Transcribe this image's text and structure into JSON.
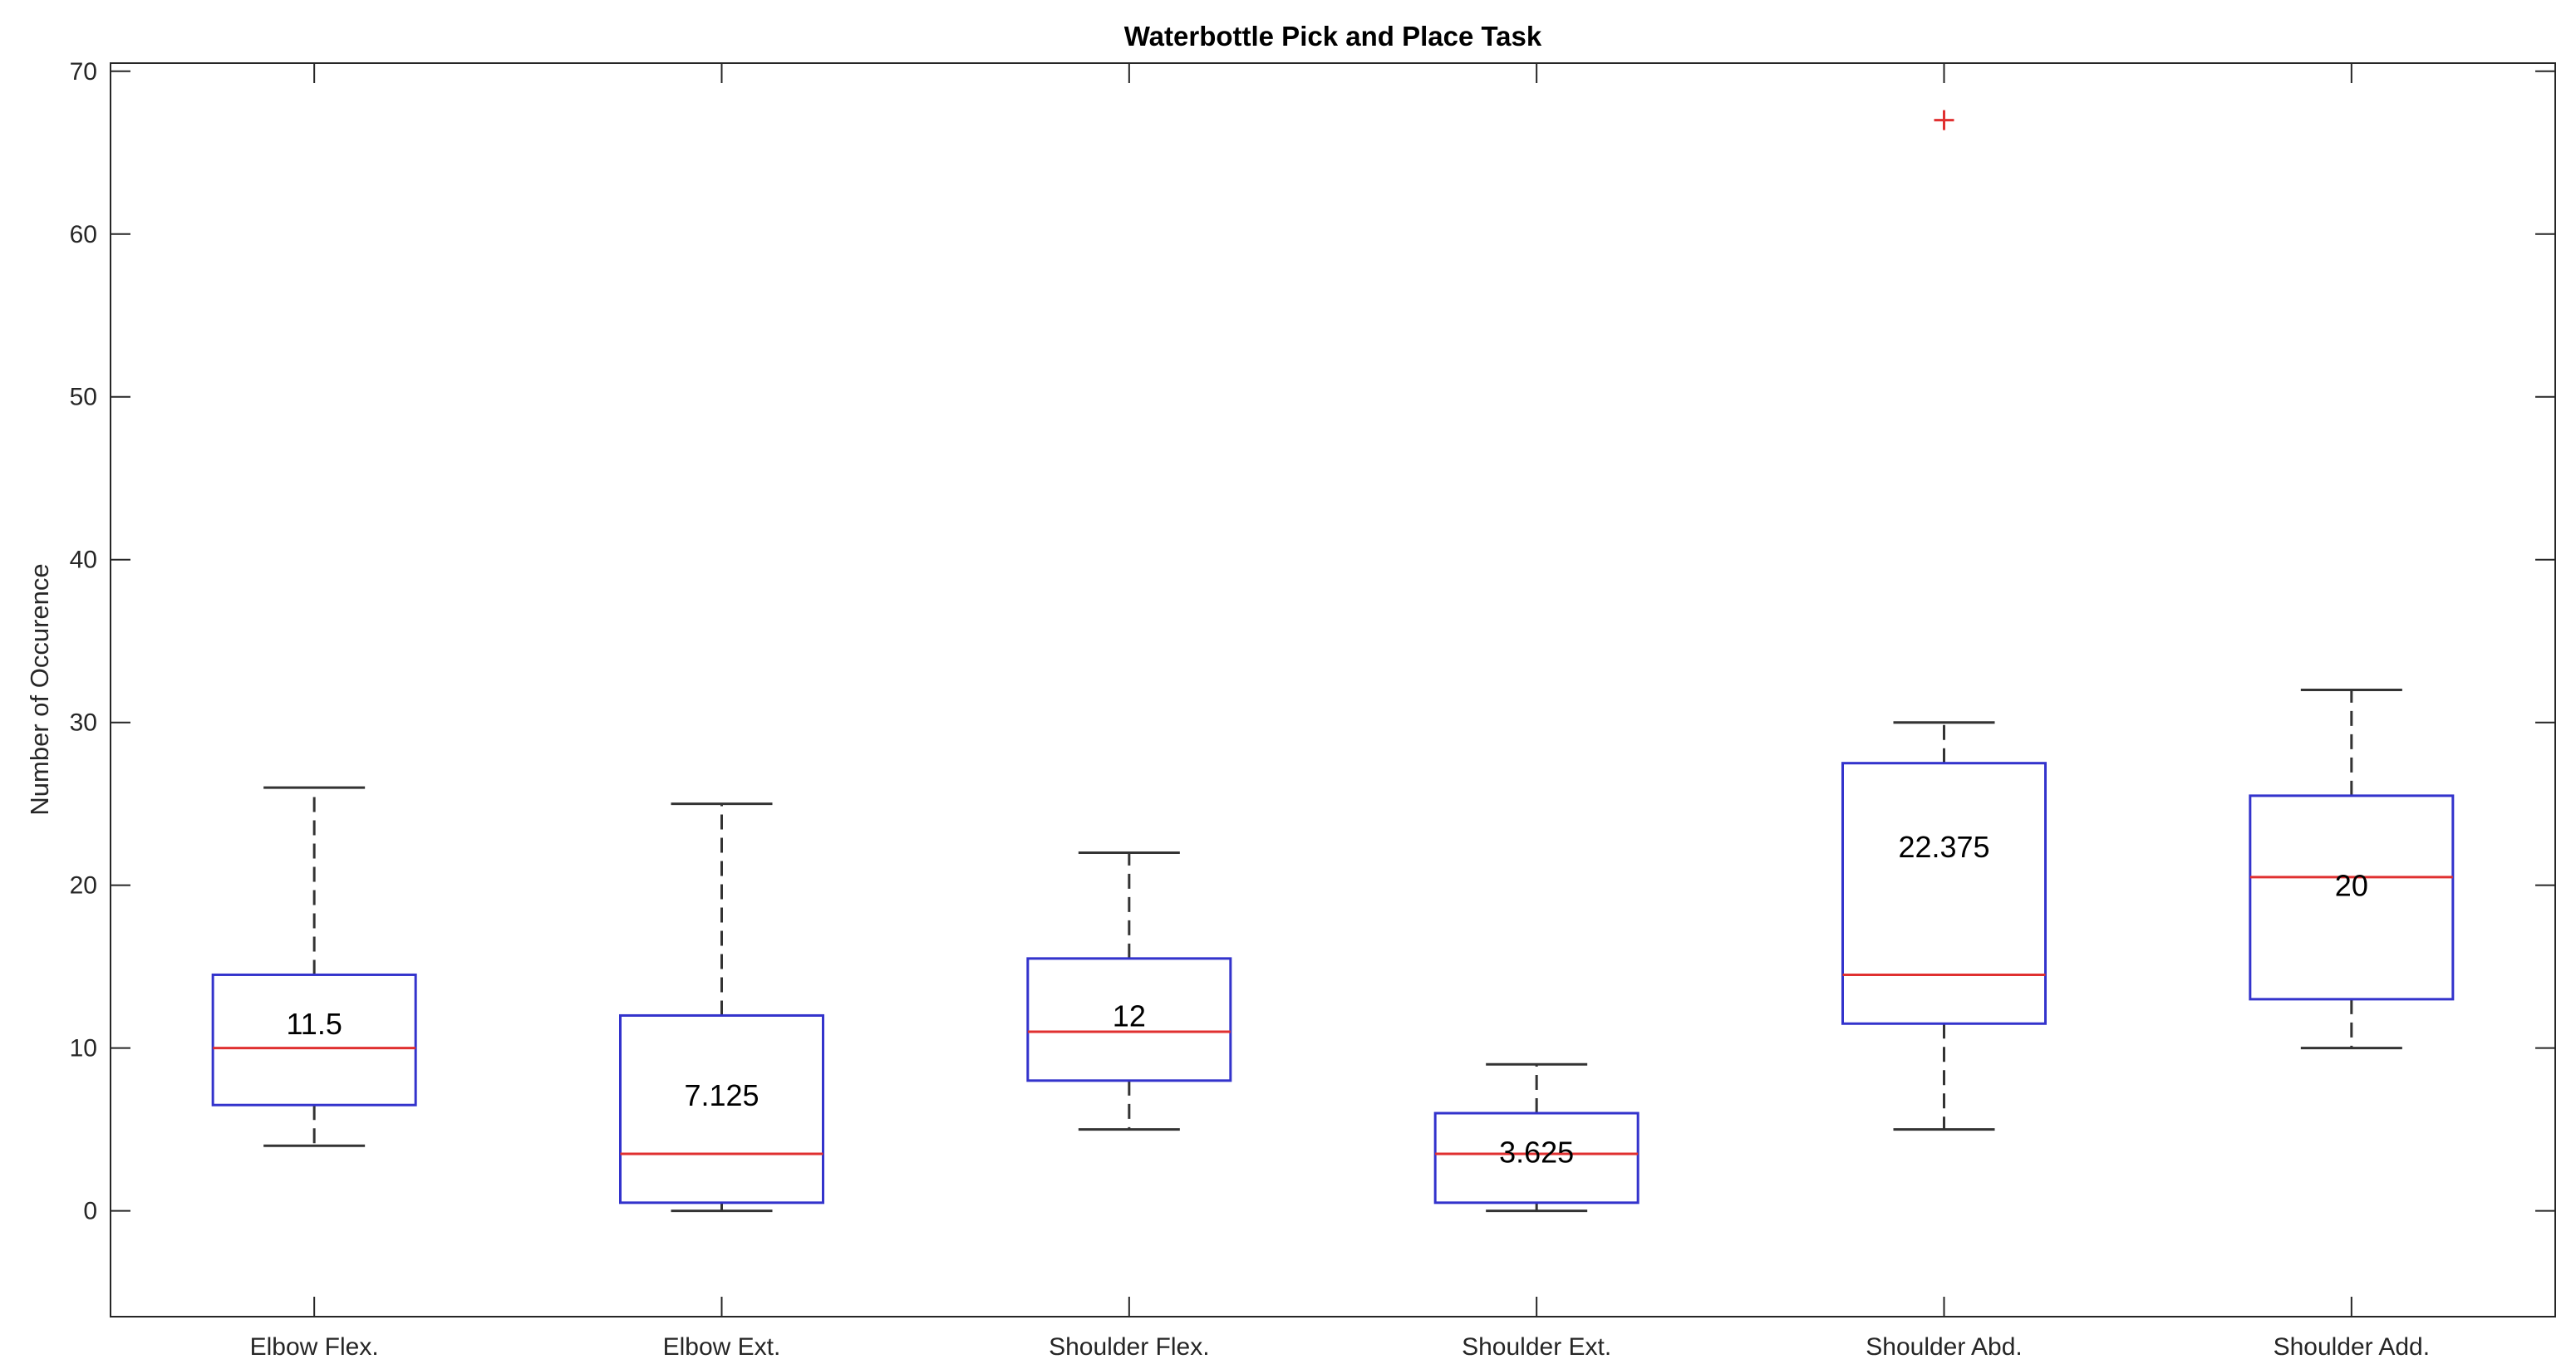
{
  "chart_data": {
    "type": "boxplot",
    "title": "Waterbottle Pick and Place Task",
    "xlabel": "",
    "ylabel": "Number of Occurence",
    "ylim": [
      -6.5,
      70.5
    ],
    "yticks": [
      0,
      10,
      20,
      30,
      40,
      50,
      60,
      70
    ],
    "grid": false,
    "categories": [
      "Elbow Flex.",
      "Elbow Ext.",
      "Shoulder Flex.",
      "Shoulder Ext.",
      "Shoulder Abd.",
      "Shoulder Add."
    ],
    "boxes": [
      {
        "whisker_low": 4,
        "q1": 6.5,
        "median": 10,
        "q3": 14.5,
        "whisker_high": 26,
        "outliers": [],
        "annotation": "11.5"
      },
      {
        "whisker_low": 0,
        "q1": 0.5,
        "median": 3.5,
        "q3": 12,
        "whisker_high": 25,
        "outliers": [],
        "annotation": "7.125"
      },
      {
        "whisker_low": 5,
        "q1": 8,
        "median": 11,
        "q3": 15.5,
        "whisker_high": 22,
        "outliers": [],
        "annotation": "12"
      },
      {
        "whisker_low": 0,
        "q1": 0.5,
        "median": 3.5,
        "q3": 6,
        "whisker_high": 9,
        "outliers": [],
        "annotation": "3.625"
      },
      {
        "whisker_low": 5,
        "q1": 11.5,
        "median": 14.5,
        "q3": 27.5,
        "whisker_high": 30,
        "outliers": [
          67
        ],
        "annotation": "22.375"
      },
      {
        "whisker_low": 10,
        "q1": 13,
        "median": 20.5,
        "q3": 25.5,
        "whisker_high": 32,
        "outliers": [],
        "annotation": "20"
      }
    ],
    "colors": {
      "box": "#3333cc",
      "median": "#e03030",
      "whisker": "#333333",
      "outlier": "#e03030",
      "axis": "#262626"
    }
  }
}
